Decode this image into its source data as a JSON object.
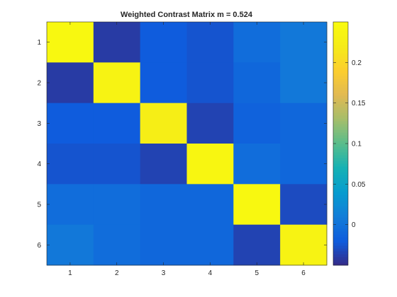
{
  "chart_data": {
    "type": "heatmap",
    "title": "Weighted Contrast Matrix m = 0.524",
    "xlabel": "",
    "ylabel": "",
    "x_categories": [
      "1",
      "2",
      "3",
      "4",
      "5",
      "6"
    ],
    "y_categories": [
      "1",
      "2",
      "3",
      "4",
      "5",
      "6"
    ],
    "values": [
      [
        0.245,
        -0.04,
        -0.02,
        -0.025,
        -0.005,
        0.005
      ],
      [
        -0.04,
        0.235,
        -0.02,
        -0.025,
        -0.01,
        0.005
      ],
      [
        -0.02,
        -0.02,
        0.225,
        -0.035,
        -0.015,
        -0.01
      ],
      [
        -0.025,
        -0.025,
        -0.035,
        0.24,
        -0.005,
        -0.01
      ],
      [
        -0.005,
        -0.005,
        -0.01,
        -0.01,
        0.245,
        -0.03
      ],
      [
        0.005,
        -0.005,
        -0.01,
        -0.01,
        -0.035,
        0.235
      ]
    ],
    "colorbar": {
      "ticks": [
        0,
        0.05,
        0.1,
        0.15,
        0.2
      ],
      "tick_labels": [
        "0",
        "0.05",
        "0.1",
        "0.15",
        "0.2"
      ],
      "range": [
        -0.05,
        0.25
      ]
    },
    "colormap": "parula",
    "grid": false,
    "legend": "none"
  }
}
